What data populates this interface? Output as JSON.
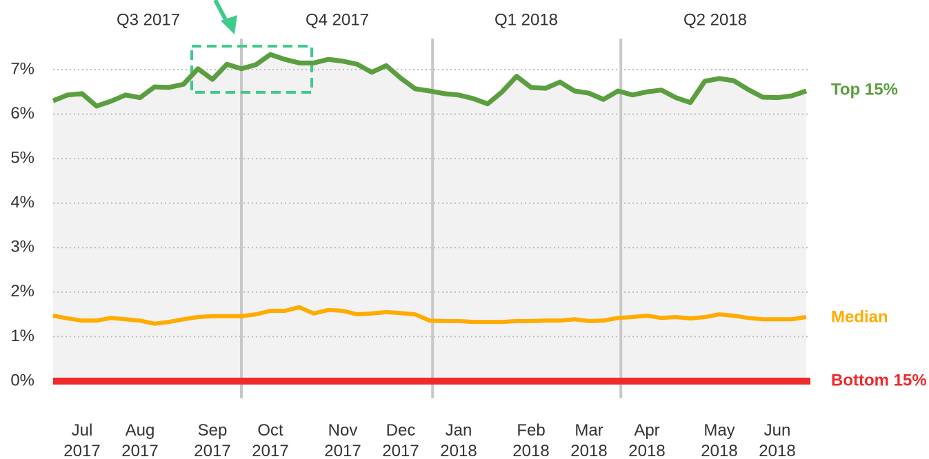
{
  "chart_data": {
    "type": "line",
    "annotations": [
      "Q3 2017",
      "Q4 2017",
      "Q1 2018",
      "Q2 2018"
    ],
    "categories": [
      null,
      null,
      "Jul 2017",
      null,
      null,
      null,
      "Aug 2017",
      null,
      null,
      null,
      null,
      "Sep 2017",
      null,
      null,
      null,
      "Oct 2017",
      null,
      null,
      null,
      null,
      "Nov 2017",
      null,
      null,
      null,
      "Dec 2017",
      null,
      null,
      null,
      "Jan 2018",
      null,
      null,
      null,
      null,
      "Feb 2018",
      null,
      null,
      null,
      "Mar 2018",
      null,
      null,
      null,
      "Apr 2018",
      null,
      null,
      null,
      null,
      "May 2018",
      null,
      null,
      null,
      "Jun 2018",
      null,
      null
    ],
    "series": [
      {
        "name": "Top 15%",
        "color": "#5b9e3f",
        "values": [
          6.3,
          6.43,
          6.46,
          6.18,
          6.29,
          6.43,
          6.37,
          6.61,
          6.6,
          6.67,
          7.02,
          6.78,
          7.12,
          7.02,
          7.11,
          7.34,
          7.23,
          7.15,
          7.15,
          7.23,
          7.19,
          7.12,
          6.94,
          7.09,
          6.81,
          6.57,
          6.52,
          6.46,
          6.43,
          6.35,
          6.23,
          6.5,
          6.85,
          6.6,
          6.58,
          6.72,
          6.52,
          6.47,
          6.33,
          6.52,
          6.43,
          6.5,
          6.54,
          6.37,
          6.26,
          6.74,
          6.8,
          6.75,
          6.55,
          6.38,
          6.37,
          6.41,
          6.52
        ]
      },
      {
        "name": "Median",
        "color": "#ffab00",
        "values": [
          1.47,
          1.41,
          1.36,
          1.36,
          1.42,
          1.39,
          1.36,
          1.29,
          1.33,
          1.39,
          1.44,
          1.46,
          1.46,
          1.46,
          1.5,
          1.58,
          1.58,
          1.66,
          1.52,
          1.6,
          1.58,
          1.5,
          1.52,
          1.55,
          1.53,
          1.5,
          1.36,
          1.35,
          1.35,
          1.33,
          1.33,
          1.33,
          1.35,
          1.35,
          1.36,
          1.36,
          1.39,
          1.35,
          1.36,
          1.42,
          1.44,
          1.47,
          1.42,
          1.44,
          1.41,
          1.44,
          1.5,
          1.47,
          1.42,
          1.39,
          1.39,
          1.39,
          1.44
        ]
      },
      {
        "name": "Bottom 15%",
        "color": "#ee2a2a",
        "values": [
          0,
          0,
          0,
          0,
          0,
          0,
          0,
          0,
          0,
          0,
          0,
          0,
          0,
          0,
          0,
          0,
          0,
          0,
          0,
          0,
          0,
          0,
          0,
          0,
          0,
          0,
          0,
          0,
          0,
          0,
          0,
          0,
          0,
          0,
          0,
          0,
          0,
          0,
          0,
          0,
          0,
          0,
          0,
          0,
          0,
          0,
          0,
          0,
          0,
          0,
          0,
          0,
          0
        ]
      }
    ],
    "ylim": [
      0,
      7
    ],
    "yticks": [
      {
        "value": 0,
        "label": "0%"
      },
      {
        "value": 1,
        "label": "1%"
      },
      {
        "value": 2,
        "label": "2%"
      },
      {
        "value": 3,
        "label": "3%"
      },
      {
        "value": 4,
        "label": "4%"
      },
      {
        "value": 5,
        "label": "5%"
      },
      {
        "value": 6,
        "label": "6%"
      },
      {
        "value": 7,
        "label": "7%"
      }
    ],
    "grid": true
  }
}
